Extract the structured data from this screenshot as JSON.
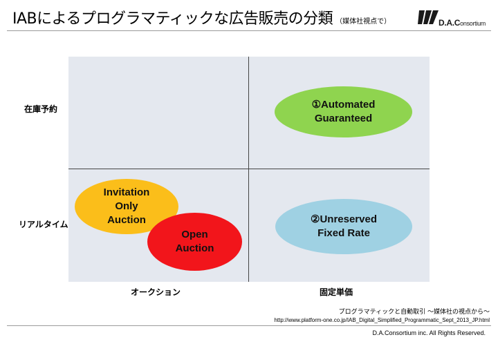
{
  "header": {
    "title": "IABによるプログラマティックな広告販売の分類",
    "subtitle": "（媒体社視点で）"
  },
  "logo": {
    "text_main": "D.A.C",
    "text_rest": "onsortium",
    "icon": "dac-stripes-logo"
  },
  "diagram": {
    "rows": [
      "在庫予約",
      "リアルタイム"
    ],
    "columns": [
      "オークション",
      "固定単価"
    ],
    "items": [
      {
        "label": "①Automated\nGuaranteed",
        "row": "在庫予約",
        "column": "固定単価",
        "color": "#8fd44f"
      },
      {
        "label": "②Unreserved\nFixed Rate",
        "row": "リアルタイム",
        "column": "固定単価",
        "color": "#9fd1e3"
      },
      {
        "label": "Invitation\nOnly\nAuction",
        "row": "リアルタイム",
        "column": "オークション",
        "color": "#fbbe1a"
      },
      {
        "label": "Open\nAuction",
        "row": "リアルタイム",
        "column": "オークション",
        "color": "#f2151b"
      }
    ]
  },
  "source": {
    "title": "プログラマティックと自動取引 〜媒体社の視点から〜",
    "url": "http://www.platform-one.co.jp/IAB_Digital_Simplified_Programmatic_Sept_2013_JP.html"
  },
  "footer": {
    "copyright": "D.A.Consortium inc. All Rights Reserved."
  }
}
